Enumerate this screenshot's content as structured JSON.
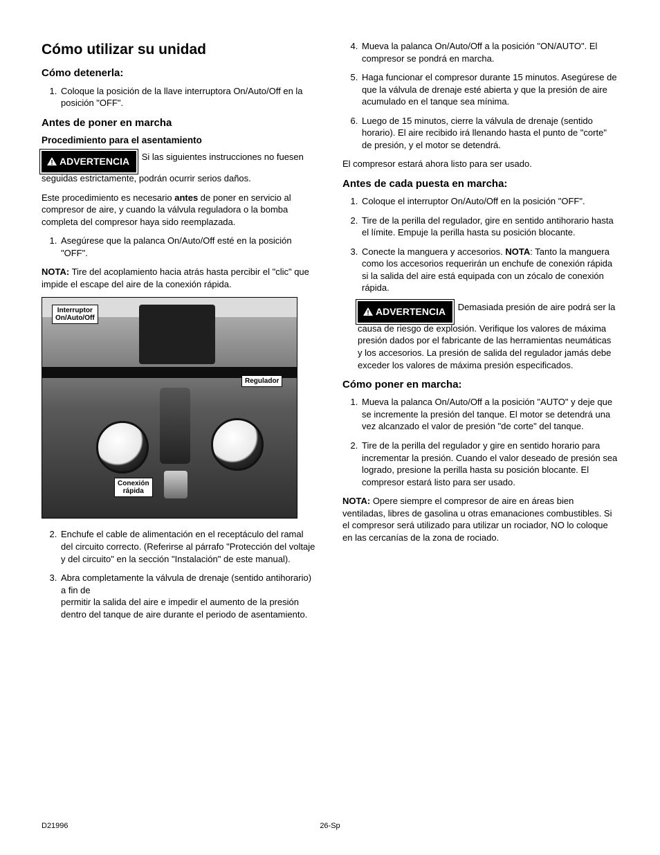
{
  "footer": {
    "left": "D21996",
    "center": "26-Sp"
  },
  "warning_label": "ADVERTENCIA",
  "left": {
    "h1": "Cómo utilizar su unidad",
    "h2_stop": "Cómo detenerla:",
    "stop_item": "Coloque la posición de la llave interruptora On/Auto/Off en la posición \"OFF\".",
    "h2_before": "Antes de poner en marcha",
    "h3_proc": "Procedimiento para el asentamiento",
    "warn1_tail": "Si las siguientes instrucciones no fuesen seguidas estrictamente, podrán ocurrir serios daños.",
    "para_proc_a": "Este procedimiento es necesario ",
    "para_proc_bold": "antes",
    "para_proc_b": " de poner en servicio al compresor de aire, y cuando la válvula reguladora o la bomba completa del compresor haya sido reemplazada.",
    "list1_item1": "Asegúrese que la palanca On/Auto/Off esté en la posición \"OFF\".",
    "nota_label": "NOTA:",
    "nota_text": " Tire del acoplamiento hacia atrás hasta percibir el \"clic\" que impide el escape del aire de la conexión rápida.",
    "fig": {
      "label_switch": "Interruptor On/Auto/Off",
      "label_reg": "Regulador",
      "label_quick": "Conexión rápida"
    },
    "list2_item2": "Enchufe el cable de alimentación en el receptáculo del ramal del circuito correcto. (Referirse al párrafo \"Protección del voltaje y del circuito\" en la sección \"Instalación\" de este manual).",
    "list2_item3a": "Abra completamente la válvula de drenaje (sentido antihorario) a fin de",
    "list2_item3b": "permitir la salida del aire e impedir el aumento de la presión dentro del tanque de aire durante el periodo de asentamiento."
  },
  "right": {
    "list_top_4": "Mueva la palanca On/Auto/Off a la posición \"ON/AUTO\". El compresor se pondrá en marcha.",
    "list_top_5": "Haga funcionar el compresor durante 15 minutos. Asegúrese de que la válvula de drenaje esté abierta y que la presión de aire acumulado en el tanque sea mínima.",
    "list_top_6": "Luego de 15 minutos, cierre la válvula de drenaje (sentido horario). El aire recibido irá llenando hasta el punto de \"corte\" de presión, y el motor se detendrá.",
    "para_ready": "El compresor estará ahora listo para ser usado.",
    "h2_before_each": "Antes de cada puesta en marcha:",
    "be_item1": "Coloque el interruptor On/Auto/Off en la posición \"OFF\".",
    "be_item2": "Tire de la perilla del regulador, gire en sentido antihorario hasta el límite. Empuje la perilla hasta su posición blocante.",
    "be_item3_a": "Conecte la manguera y accesorios. ",
    "be_item3_bold": "NOTA",
    "be_item3_b": ": Tanto la manguera como los accesorios requerirán un enchufe de conexión rápida si la salida del aire está equipada con un zócalo de conexión rápida.",
    "warn2_tail": "Demasiada presión de aire podrá ser la causa de riesgo de explosión. Verifique los valores de máxima presión dados por el fabricante de las herramientas neumáticas y los accesorios. La presión de salida del regulador jamás debe exceder los valores de máxima presión especificados.",
    "h2_start": "Cómo poner en marcha:",
    "start_item1": "Mueva la palanca On/Auto/Off a la posición \"AUTO\" y deje que se incremente la presión del tanque. El motor se detendrá una vez alcanzado el valor de presión \"de corte\" del tanque.",
    "start_item2": "Tire de la perilla del regulador y gire en sentido horario para incrementar la presión. Cuando el valor deseado de presión sea logrado, presione la perilla hasta su posición blocante. El compresor estará listo para ser usado.",
    "nota2_label": "NOTA:",
    "nota2_text": "  Opere siempre el compresor de aire en áreas bien ventiladas, libres de gasolina u otras emanaciones combustibles. Si el compresor será utilizado para utilizar un rociador, NO lo coloque en las cercanías de la zona de rociado."
  }
}
